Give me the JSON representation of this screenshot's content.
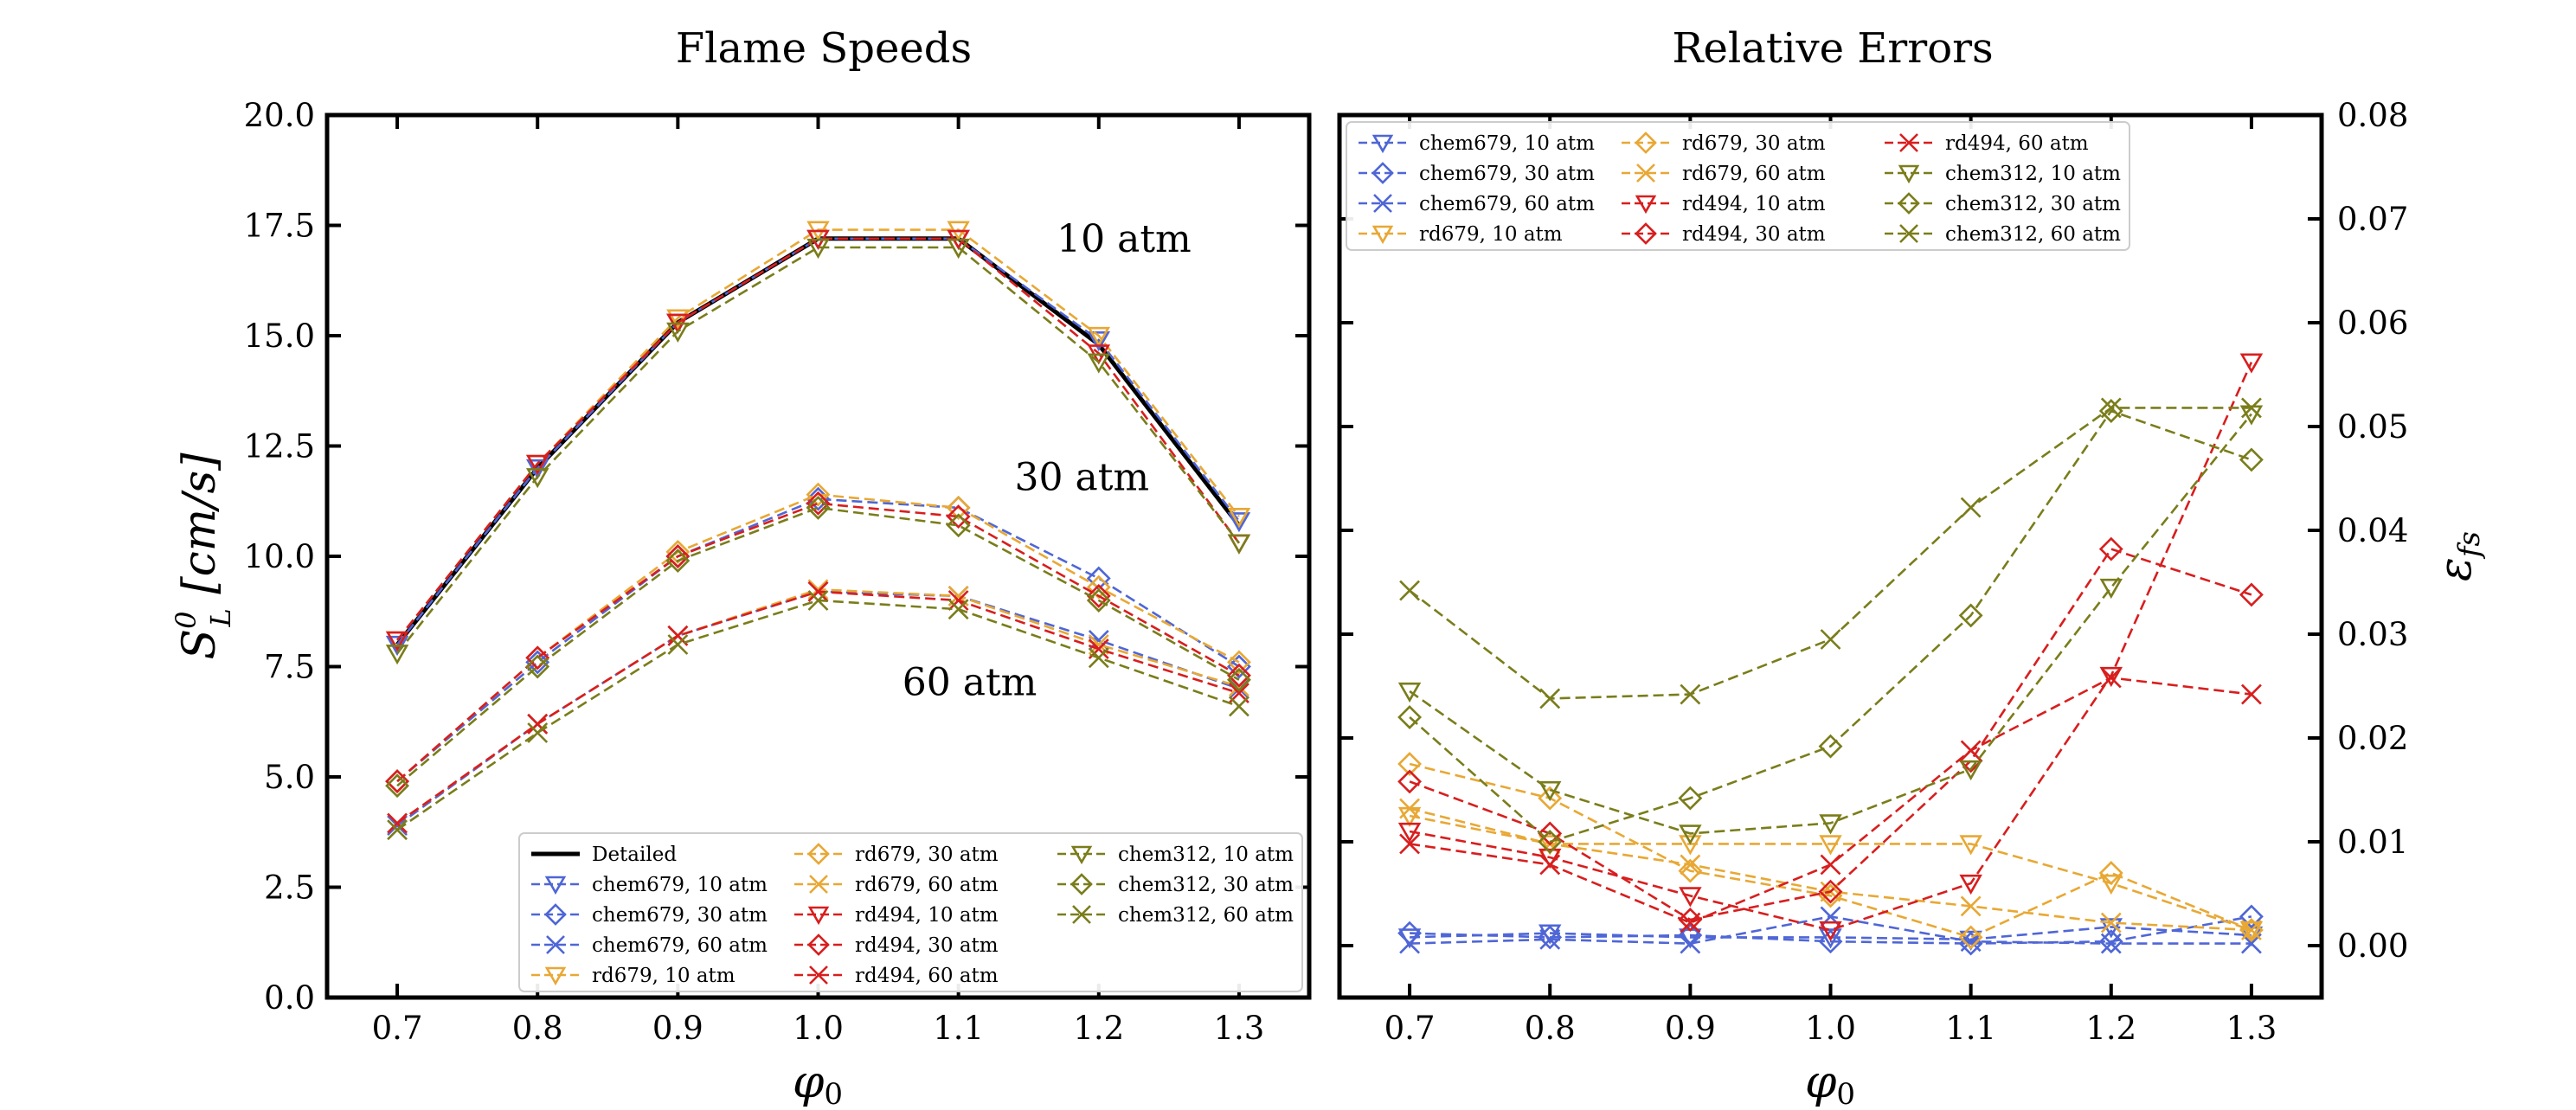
{
  "colors": {
    "chem679": "#4f66d6",
    "rd679": "#e8a834",
    "rd494": "#d81e1e",
    "chem312": "#7a7d1a",
    "detailed": "#000000"
  },
  "chart_data": [
    {
      "type": "line",
      "title": "Flame Speeds",
      "xlabel": "φ",
      "xlabel_sub": "0",
      "ylabel_prefix": "S",
      "ylabel_sup": "0",
      "ylabel_sub": "L",
      "ylabel_suffix": " [cm/s]",
      "x": [
        0.7,
        0.8,
        0.9,
        1.0,
        1.1,
        1.2,
        1.3
      ],
      "xlim": [
        0.65,
        1.35
      ],
      "ylim": [
        0.0,
        20.0
      ],
      "xticks": [
        "0.7",
        "0.8",
        "0.9",
        "1.0",
        "1.1",
        "1.2",
        "1.3"
      ],
      "yticks": [
        "0.0",
        "2.5",
        "5.0",
        "7.5",
        "10.0",
        "12.5",
        "15.0",
        "17.5",
        "20.0"
      ],
      "yticks_values": [
        0.0,
        2.5,
        5.0,
        7.5,
        10.0,
        12.5,
        15.0,
        17.5,
        20.0
      ],
      "annotations": [
        {
          "text": "10 atm",
          "x": 1.17,
          "y": 16.9
        },
        {
          "text": "30 atm",
          "x": 1.14,
          "y": 11.5
        },
        {
          "text": "60 atm",
          "x": 1.06,
          "y": 6.85
        }
      ],
      "legend_position": "lower-right",
      "series": [
        {
          "name": "Detailed",
          "style": "detailed",
          "marker": "none",
          "values": [
            8.0,
            12.0,
            15.3,
            17.2,
            17.2,
            14.8,
            10.7
          ]
        },
        {
          "name": "chem679, 10 atm",
          "style": "chem679",
          "marker": "tri",
          "values": [
            8.0,
            12.0,
            15.3,
            17.2,
            17.2,
            14.9,
            10.8
          ]
        },
        {
          "name": "chem679, 30 atm",
          "style": "chem679",
          "marker": "diamond",
          "values": [
            4.9,
            7.6,
            10.0,
            11.3,
            11.1,
            9.5,
            7.5
          ]
        },
        {
          "name": "chem679, 60 atm",
          "style": "chem679",
          "marker": "x",
          "values": [
            3.9,
            6.2,
            8.2,
            9.2,
            9.1,
            8.1,
            7.0
          ]
        },
        {
          "name": "rd679, 10 atm",
          "style": "rd679",
          "marker": "tri",
          "values": [
            8.1,
            12.1,
            15.4,
            17.4,
            17.4,
            15.0,
            10.9
          ]
        },
        {
          "name": "rd679, 30 atm",
          "style": "rd679",
          "marker": "diamond",
          "values": [
            4.9,
            7.7,
            10.1,
            11.4,
            11.1,
            9.3,
            7.6
          ]
        },
        {
          "name": "rd679, 60 atm",
          "style": "rd679",
          "marker": "x",
          "values": [
            3.95,
            6.2,
            8.2,
            9.25,
            9.1,
            8.0,
            7.05
          ]
        },
        {
          "name": "rd494, 10 atm",
          "style": "rd494",
          "marker": "tri",
          "values": [
            8.1,
            12.1,
            15.3,
            17.2,
            17.2,
            14.6,
            10.3
          ]
        },
        {
          "name": "rd494, 30 atm",
          "style": "rd494",
          "marker": "diamond",
          "values": [
            4.9,
            7.7,
            10.0,
            11.2,
            10.9,
            9.1,
            7.3
          ]
        },
        {
          "name": "rd494, 60 atm",
          "style": "rd494",
          "marker": "x",
          "values": [
            3.95,
            6.2,
            8.2,
            9.2,
            9.0,
            7.9,
            6.9
          ]
        },
        {
          "name": "chem312, 10 atm",
          "style": "chem312",
          "marker": "tri",
          "values": [
            7.8,
            11.8,
            15.1,
            17.0,
            17.0,
            14.4,
            10.3
          ]
        },
        {
          "name": "chem312, 30 atm",
          "style": "chem312",
          "marker": "diamond",
          "values": [
            4.8,
            7.5,
            9.9,
            11.1,
            10.7,
            9.0,
            7.2
          ]
        },
        {
          "name": "chem312, 60 atm",
          "style": "chem312",
          "marker": "x",
          "values": [
            3.8,
            6.0,
            8.0,
            9.0,
            8.8,
            7.7,
            6.6
          ]
        }
      ]
    },
    {
      "type": "line",
      "title": "Relative Errors",
      "xlabel": "φ",
      "xlabel_sub": "0",
      "ylabel": "ε",
      "ylabel_sub": "fs",
      "x": [
        0.7,
        0.8,
        0.9,
        1.0,
        1.1,
        1.2,
        1.3
      ],
      "xlim": [
        0.65,
        1.35
      ],
      "ylim": [
        -0.005,
        0.08
      ],
      "xticks": [
        "0.7",
        "0.8",
        "0.9",
        "1.0",
        "1.1",
        "1.2",
        "1.3"
      ],
      "yticks": [
        "0.00",
        "0.01",
        "0.02",
        "0.03",
        "0.04",
        "0.05",
        "0.06",
        "0.07",
        "0.08"
      ],
      "yticks_values": [
        0.0,
        0.01,
        0.02,
        0.03,
        0.04,
        0.05,
        0.06,
        0.07,
        0.08
      ],
      "yaxis_side": "right",
      "legend_position": "top-left",
      "series": [
        {
          "name": "chem679, 10 atm",
          "style": "chem679",
          "marker": "tri",
          "values": [
            0.0008,
            0.0012,
            0.0008,
            0.0008,
            0.0006,
            0.0018,
            0.001
          ]
        },
        {
          "name": "chem679, 30 atm",
          "style": "chem679",
          "marker": "diamond",
          "values": [
            0.0012,
            0.0008,
            0.001,
            0.0004,
            0.0002,
            0.0004,
            0.0028
          ]
        },
        {
          "name": "chem679, 60 atm",
          "style": "chem679",
          "marker": "x",
          "values": [
            0.0002,
            0.0006,
            0.0002,
            0.0028,
            0.0004,
            0.0002,
            0.0002
          ]
        },
        {
          "name": "rd679, 10 atm",
          "style": "rd679",
          "marker": "tri",
          "values": [
            0.0125,
            0.0098,
            0.0098,
            0.0098,
            0.0098,
            0.006,
            0.0015
          ]
        },
        {
          "name": "rd679, 30 atm",
          "style": "rd679",
          "marker": "diamond",
          "values": [
            0.0175,
            0.0142,
            0.0072,
            0.0048,
            0.0008,
            0.007,
            0.0015
          ]
        },
        {
          "name": "rd679, 60 atm",
          "style": "rd679",
          "marker": "x",
          "values": [
            0.0132,
            0.0098,
            0.0078,
            0.0052,
            0.0038,
            0.0022,
            0.0015
          ]
        },
        {
          "name": "rd494, 10 atm",
          "style": "rd494",
          "marker": "tri",
          "values": [
            0.011,
            0.0085,
            0.0048,
            0.0015,
            0.006,
            0.026,
            0.0562
          ]
        },
        {
          "name": "rd494, 30 atm",
          "style": "rd494",
          "marker": "diamond",
          "values": [
            0.0158,
            0.0108,
            0.0025,
            0.0052,
            0.0178,
            0.0382,
            0.0338
          ]
        },
        {
          "name": "rd494, 60 atm",
          "style": "rd494",
          "marker": "x",
          "values": [
            0.0098,
            0.0078,
            0.0022,
            0.0078,
            0.0188,
            0.0258,
            0.0242
          ]
        },
        {
          "name": "chem312, 10 atm",
          "style": "chem312",
          "marker": "tri",
          "values": [
            0.0245,
            0.015,
            0.0108,
            0.0118,
            0.017,
            0.0345,
            0.0512
          ]
        },
        {
          "name": "chem312, 30 atm",
          "style": "chem312",
          "marker": "diamond",
          "values": [
            0.022,
            0.01,
            0.0142,
            0.0192,
            0.0318,
            0.0515,
            0.0468
          ]
        },
        {
          "name": "chem312, 60 atm",
          "style": "chem312",
          "marker": "x",
          "values": [
            0.0342,
            0.0238,
            0.0242,
            0.0295,
            0.0422,
            0.0518,
            0.0518
          ]
        }
      ]
    }
  ]
}
